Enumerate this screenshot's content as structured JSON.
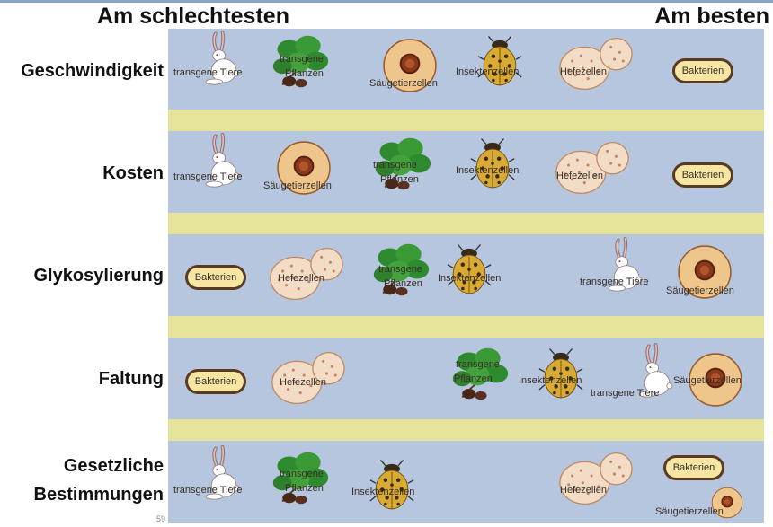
{
  "header": {
    "left": "Am schlechtesten",
    "right": "Am besten"
  },
  "page_number": "59",
  "colors": {
    "panel": "#b5c6de",
    "stripe": "#e6e39a",
    "cell_outer": "#eec68c",
    "cell_nucleus": "#8a3a1a",
    "yeast": "#f2dcc6",
    "beetle": "#d9ab33",
    "leaf": "#2e8a2e",
    "bacteria": "#f5e7a3"
  },
  "labels": {
    "tiere": "transgene Tiere",
    "pflanzen_1": "transgene",
    "pflanzen_2": "Pflanzen",
    "saeuger": "Säugetierzellen",
    "insekten": "Insektenzellen",
    "hefe": "Hefezellen",
    "bakterien": "Bakterien"
  },
  "rows": [
    {
      "label": "Geschwindigkeit",
      "order": [
        "transgene Tiere",
        "transgene Pflanzen",
        "Säugetierzellen",
        "Insektenzellen",
        "Hefezellen",
        "Bakterien"
      ]
    },
    {
      "label": "Kosten",
      "order": [
        "transgene Tiere",
        "Säugetierzellen",
        "transgene Pflanzen",
        "Insektenzellen",
        "Hefezellen",
        "Bakterien"
      ]
    },
    {
      "label": "Glykosylierung",
      "order": [
        "Bakterien",
        "Hefezellen",
        "transgene Pflanzen",
        "Insektenzellen",
        "transgene Tiere",
        "Säugetierzellen"
      ]
    },
    {
      "label": "Faltung",
      "order": [
        "Bakterien",
        "Hefezellen",
        "transgene Pflanzen",
        "Insektenzellen",
        "transgene Tiere",
        "Säugetierzellen"
      ]
    },
    {
      "label_line1": "Gesetzliche",
      "label_line2": "Bestimmungen",
      "order": [
        "transgene Tiere",
        "transgene Pflanzen",
        "Insektenzellen",
        "Hefezellen",
        "Bakterien",
        "Säugetierzellen"
      ]
    }
  ]
}
